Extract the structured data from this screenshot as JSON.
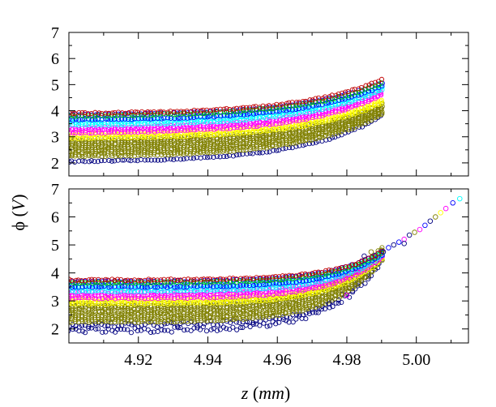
{
  "chart_data": {
    "type": "scatter",
    "marker": "open-circle",
    "ylabel": "ϕ (V)",
    "ylabel_parts": {
      "symbol": "ϕ",
      "open": " (",
      "unit": "V",
      "close": ")"
    },
    "xlabel": "z (mm)",
    "xlabel_parts": {
      "variable": "z",
      "open": " (",
      "unit": "mm",
      "close": ")"
    },
    "xlim": [
      4.9,
      5.015
    ],
    "xticks": [
      4.92,
      4.94,
      4.96,
      4.98,
      5.0
    ],
    "xtick_labels": [
      "4.92",
      "4.94",
      "4.96",
      "4.98",
      "5.00"
    ],
    "panels": [
      {
        "name": "top",
        "ylim": [
          1.5,
          7
        ],
        "yticks": [
          2,
          3,
          4,
          5,
          6,
          7
        ],
        "ytick_labels": [
          "2",
          "3",
          "4",
          "5",
          "6",
          "7"
        ],
        "x_end": 4.99,
        "growth_scale": 0.5,
        "series": [
          {
            "name": "navy",
            "color": "#000080",
            "start": 2.05,
            "end": 3.8,
            "bands": 1
          },
          {
            "name": "olive",
            "color": "#808000",
            "start": 2.25,
            "end": 3.85,
            "bands": 9
          },
          {
            "name": "yellow",
            "color": "#ffff00",
            "start": 2.95,
            "end": 4.3,
            "bands": 3
          },
          {
            "name": "magenta",
            "color": "#ff00ff",
            "start": 3.15,
            "end": 4.6,
            "bands": 3
          },
          {
            "name": "cyan",
            "color": "#00ffff",
            "start": 3.45,
            "end": 4.8,
            "bands": 3
          },
          {
            "name": "blue",
            "color": "#0000ff",
            "start": 3.65,
            "end": 4.95,
            "bands": 2
          },
          {
            "name": "green",
            "color": "#00c000",
            "start": 3.8,
            "end": 5.05,
            "bands": 1
          },
          {
            "name": "red",
            "color": "#c00000",
            "start": 3.9,
            "end": 5.2,
            "bands": 1
          }
        ]
      },
      {
        "name": "bottom",
        "ylim": [
          1.5,
          7
        ],
        "yticks": [
          2,
          3,
          4,
          5,
          6,
          7
        ],
        "ytick_labels": [
          "2",
          "3",
          "4",
          "5",
          "6",
          "7"
        ],
        "x_end": 4.99,
        "growth_scale": 0.15,
        "series": [
          {
            "name": "navy",
            "color": "#000080",
            "start": 1.95,
            "end": 4.4,
            "bands": 2
          },
          {
            "name": "olive",
            "color": "#808000",
            "start": 2.25,
            "end": 4.45,
            "bands": 9
          },
          {
            "name": "yellow",
            "color": "#ffff00",
            "start": 2.9,
            "end": 4.5,
            "bands": 3
          },
          {
            "name": "magenta",
            "color": "#ff00ff",
            "start": 3.1,
            "end": 4.55,
            "bands": 3
          },
          {
            "name": "cyan",
            "color": "#00ffff",
            "start": 3.35,
            "end": 4.6,
            "bands": 3
          },
          {
            "name": "blue",
            "color": "#0000ff",
            "start": 3.5,
            "end": 4.65,
            "bands": 2
          },
          {
            "name": "green",
            "color": "#00c000",
            "start": 3.65,
            "end": 4.7,
            "bands": 1
          },
          {
            "name": "red",
            "color": "#c00000",
            "start": 3.75,
            "end": 4.75,
            "bands": 1
          }
        ],
        "tail_points": [
          {
            "x": 4.9905,
            "y": 4.75,
            "color": "#000080"
          },
          {
            "x": 4.992,
            "y": 4.9,
            "color": "#0000ff"
          },
          {
            "x": 4.9935,
            "y": 5.0,
            "color": "#000080"
          },
          {
            "x": 4.995,
            "y": 5.1,
            "color": "#0000ff"
          },
          {
            "x": 4.9965,
            "y": 5.2,
            "color": "#ff00ff"
          },
          {
            "x": 4.998,
            "y": 5.35,
            "color": "#000080"
          },
          {
            "x": 4.9995,
            "y": 5.45,
            "color": "#808000"
          },
          {
            "x": 5.001,
            "y": 5.55,
            "color": "#ff00ff"
          },
          {
            "x": 5.0025,
            "y": 5.7,
            "color": "#0000ff"
          },
          {
            "x": 5.004,
            "y": 5.85,
            "color": "#000080"
          },
          {
            "x": 5.0055,
            "y": 6.0,
            "color": "#808000"
          },
          {
            "x": 5.007,
            "y": 6.15,
            "color": "#ffff00"
          },
          {
            "x": 5.0085,
            "y": 6.3,
            "color": "#ff00ff"
          },
          {
            "x": 5.0105,
            "y": 6.5,
            "color": "#0000ff"
          },
          {
            "x": 5.0125,
            "y": 6.65,
            "color": "#00ffff"
          },
          {
            "x": 4.985,
            "y": 4.6,
            "color": "#000080"
          },
          {
            "x": 4.987,
            "y": 4.75,
            "color": "#808000"
          },
          {
            "x": 4.9965,
            "y": 5.05,
            "color": "#000080"
          },
          {
            "x": 4.975,
            "y": 2.9,
            "color": "#000080"
          },
          {
            "x": 4.98,
            "y": 3.2,
            "color": "#ff00ff"
          }
        ]
      }
    ]
  }
}
